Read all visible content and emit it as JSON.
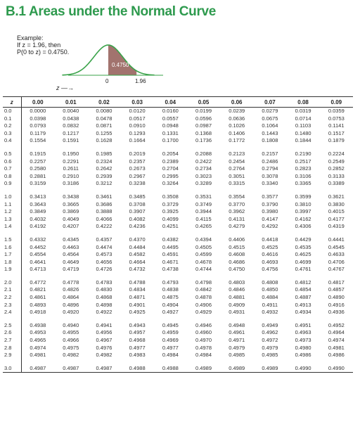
{
  "title": "B.1 Areas under the Normal Curve",
  "example": {
    "line1": "Example:",
    "line2": "If z = 1.96, then",
    "line3": "P(0 to z) = 0.4750."
  },
  "figure": {
    "area_label": "0.4750",
    "tick_zero": "0",
    "tick_z": "1.96",
    "z_label": "z",
    "arrow": "—→",
    "curve_color": "#3aa34a",
    "shade_color": "#a2736e"
  },
  "table": {
    "headers": [
      "z",
      "0.00",
      "0.01",
      "0.02",
      "0.03",
      "0.04",
      "0.05",
      "0.06",
      "0.07",
      "0.08",
      "0.09"
    ],
    "groups": [
      [
        [
          "0.0",
          "0.0000",
          "0.0040",
          "0.0080",
          "0.0120",
          "0.0160",
          "0.0199",
          "0.0239",
          "0.0279",
          "0.0319",
          "0.0359"
        ],
        [
          "0.1",
          "0.0398",
          "0.0438",
          "0.0478",
          "0.0517",
          "0.0557",
          "0.0596",
          "0.0636",
          "0.0675",
          "0.0714",
          "0.0753"
        ],
        [
          "0.2",
          "0.0793",
          "0.0832",
          "0.0871",
          "0.0910",
          "0.0948",
          "0.0987",
          "0.1026",
          "0.1064",
          "0.1103",
          "0.1141"
        ],
        [
          "0.3",
          "0.1179",
          "0.1217",
          "0.1255",
          "0.1293",
          "0.1331",
          "0.1368",
          "0.1406",
          "0.1443",
          "0.1480",
          "0.1517"
        ],
        [
          "0.4",
          "0.1554",
          "0.1591",
          "0.1628",
          "0.1664",
          "0.1700",
          "0.1736",
          "0.1772",
          "0.1808",
          "0.1844",
          "0.1879"
        ]
      ],
      [
        [
          "0.5",
          "0.1915",
          "0.1950",
          "0.1985",
          "0.2019",
          "0.2054",
          "0.2088",
          "0.2123",
          "0.2157",
          "0.2190",
          "0.2224"
        ],
        [
          "0.6",
          "0.2257",
          "0.2291",
          "0.2324",
          "0.2357",
          "0.2389",
          "0.2422",
          "0.2454",
          "0.2486",
          "0.2517",
          "0.2549"
        ],
        [
          "0.7",
          "0.2580",
          "0.2611",
          "0.2642",
          "0.2673",
          "0.2704",
          "0.2734",
          "0.2764",
          "0.2794",
          "0.2823",
          "0.2852"
        ],
        [
          "0.8",
          "0.2881",
          "0.2910",
          "0.2939",
          "0.2967",
          "0.2995",
          "0.3023",
          "0.3051",
          "0.3078",
          "0.3106",
          "0.3133"
        ],
        [
          "0.9",
          "0.3159",
          "0.3186",
          "0.3212",
          "0.3238",
          "0.3264",
          "0.3289",
          "0.3315",
          "0.3340",
          "0.3365",
          "0.3389"
        ]
      ],
      [
        [
          "1.0",
          "0.3413",
          "0.3438",
          "0.3461",
          "0.3485",
          "0.3508",
          "0.3531",
          "0.3554",
          "0.3577",
          "0.3599",
          "0.3621"
        ],
        [
          "1.1",
          "0.3643",
          "0.3665",
          "0.3686",
          "0.3708",
          "0.3729",
          "0.3749",
          "0.3770",
          "0.3790",
          "0.3810",
          "0.3830"
        ],
        [
          "1.2",
          "0.3849",
          "0.3869",
          "0.3888",
          "0.3907",
          "0.3925",
          "0.3944",
          "0.3962",
          "0.3980",
          "0.3997",
          "0.4015"
        ],
        [
          "1.3",
          "0.4032",
          "0.4049",
          "0.4066",
          "0.4082",
          "0.4099",
          "0.4115",
          "0.4131",
          "0.4147",
          "0.4162",
          "0.4177"
        ],
        [
          "1.4",
          "0.4192",
          "0.4207",
          "0.4222",
          "0.4236",
          "0.4251",
          "0.4265",
          "0.4279",
          "0.4292",
          "0.4306",
          "0.4319"
        ]
      ],
      [
        [
          "1.5",
          "0.4332",
          "0.4345",
          "0.4357",
          "0.4370",
          "0.4382",
          "0.4394",
          "0.4406",
          "0.4418",
          "0.4429",
          "0.4441"
        ],
        [
          "1.6",
          "0.4452",
          "0.4463",
          "0.4474",
          "0.4484",
          "0.4495",
          "0.4505",
          "0.4515",
          "0.4525",
          "0.4535",
          "0.4545"
        ],
        [
          "1.7",
          "0.4554",
          "0.4564",
          "0.4573",
          "0.4582",
          "0.4591",
          "0.4599",
          "0.4608",
          "0.4616",
          "0.4625",
          "0.4633"
        ],
        [
          "1.8",
          "0.4641",
          "0.4649",
          "0.4656",
          "0.4664",
          "0.4671",
          "0.4678",
          "0.4686",
          "0.4693",
          "0.4699",
          "0.4706"
        ],
        [
          "1.9",
          "0.4713",
          "0.4719",
          "0.4726",
          "0.4732",
          "0.4738",
          "0.4744",
          "0.4750",
          "0.4756",
          "0.4761",
          "0.4767"
        ]
      ],
      [
        [
          "2.0",
          "0.4772",
          "0.4778",
          "0.4783",
          "0.4788",
          "0.4793",
          "0.4798",
          "0.4803",
          "0.4808",
          "0.4812",
          "0.4817"
        ],
        [
          "2.1",
          "0.4821",
          "0.4826",
          "0.4830",
          "0.4834",
          "0.4838",
          "0.4842",
          "0.4846",
          "0.4850",
          "0.4854",
          "0.4857"
        ],
        [
          "2.2",
          "0.4861",
          "0.4864",
          "0.4868",
          "0.4871",
          "0.4875",
          "0.4878",
          "0.4881",
          "0.4884",
          "0.4887",
          "0.4890"
        ],
        [
          "2.3",
          "0.4893",
          "0.4896",
          "0.4898",
          "0.4901",
          "0.4904",
          "0.4906",
          "0.4909",
          "0.4911",
          "0.4913",
          "0.4916"
        ],
        [
          "2.4",
          "0.4918",
          "0.4920",
          "0.4922",
          "0.4925",
          "0.4927",
          "0.4929",
          "0.4931",
          "0.4932",
          "0.4934",
          "0.4936"
        ]
      ],
      [
        [
          "2.5",
          "0.4938",
          "0.4940",
          "0.4941",
          "0.4943",
          "0.4945",
          "0.4946",
          "0.4948",
          "0.4949",
          "0.4951",
          "0.4952"
        ],
        [
          "2.6",
          "0.4953",
          "0.4955",
          "0.4956",
          "0.4957",
          "0.4959",
          "0.4960",
          "0.4961",
          "0.4962",
          "0.4963",
          "0.4964"
        ],
        [
          "2.7",
          "0.4965",
          "0.4966",
          "0.4967",
          "0.4968",
          "0.4969",
          "0.4970",
          "0.4971",
          "0.4972",
          "0.4973",
          "0.4974"
        ],
        [
          "2.8",
          "0.4974",
          "0.4975",
          "0.4976",
          "0.4977",
          "0.4977",
          "0.4978",
          "0.4979",
          "0.4979",
          "0.4980",
          "0.4981"
        ],
        [
          "2.9",
          "0.4981",
          "0.4982",
          "0.4982",
          "0.4983",
          "0.4984",
          "0.4984",
          "0.4985",
          "0.4985",
          "0.4986",
          "0.4986"
        ]
      ],
      [
        [
          "3.0",
          "0.4987",
          "0.4987",
          "0.4987",
          "0.4988",
          "0.4988",
          "0.4989",
          "0.4989",
          "0.4989",
          "0.4990",
          "0.4990"
        ]
      ]
    ]
  }
}
